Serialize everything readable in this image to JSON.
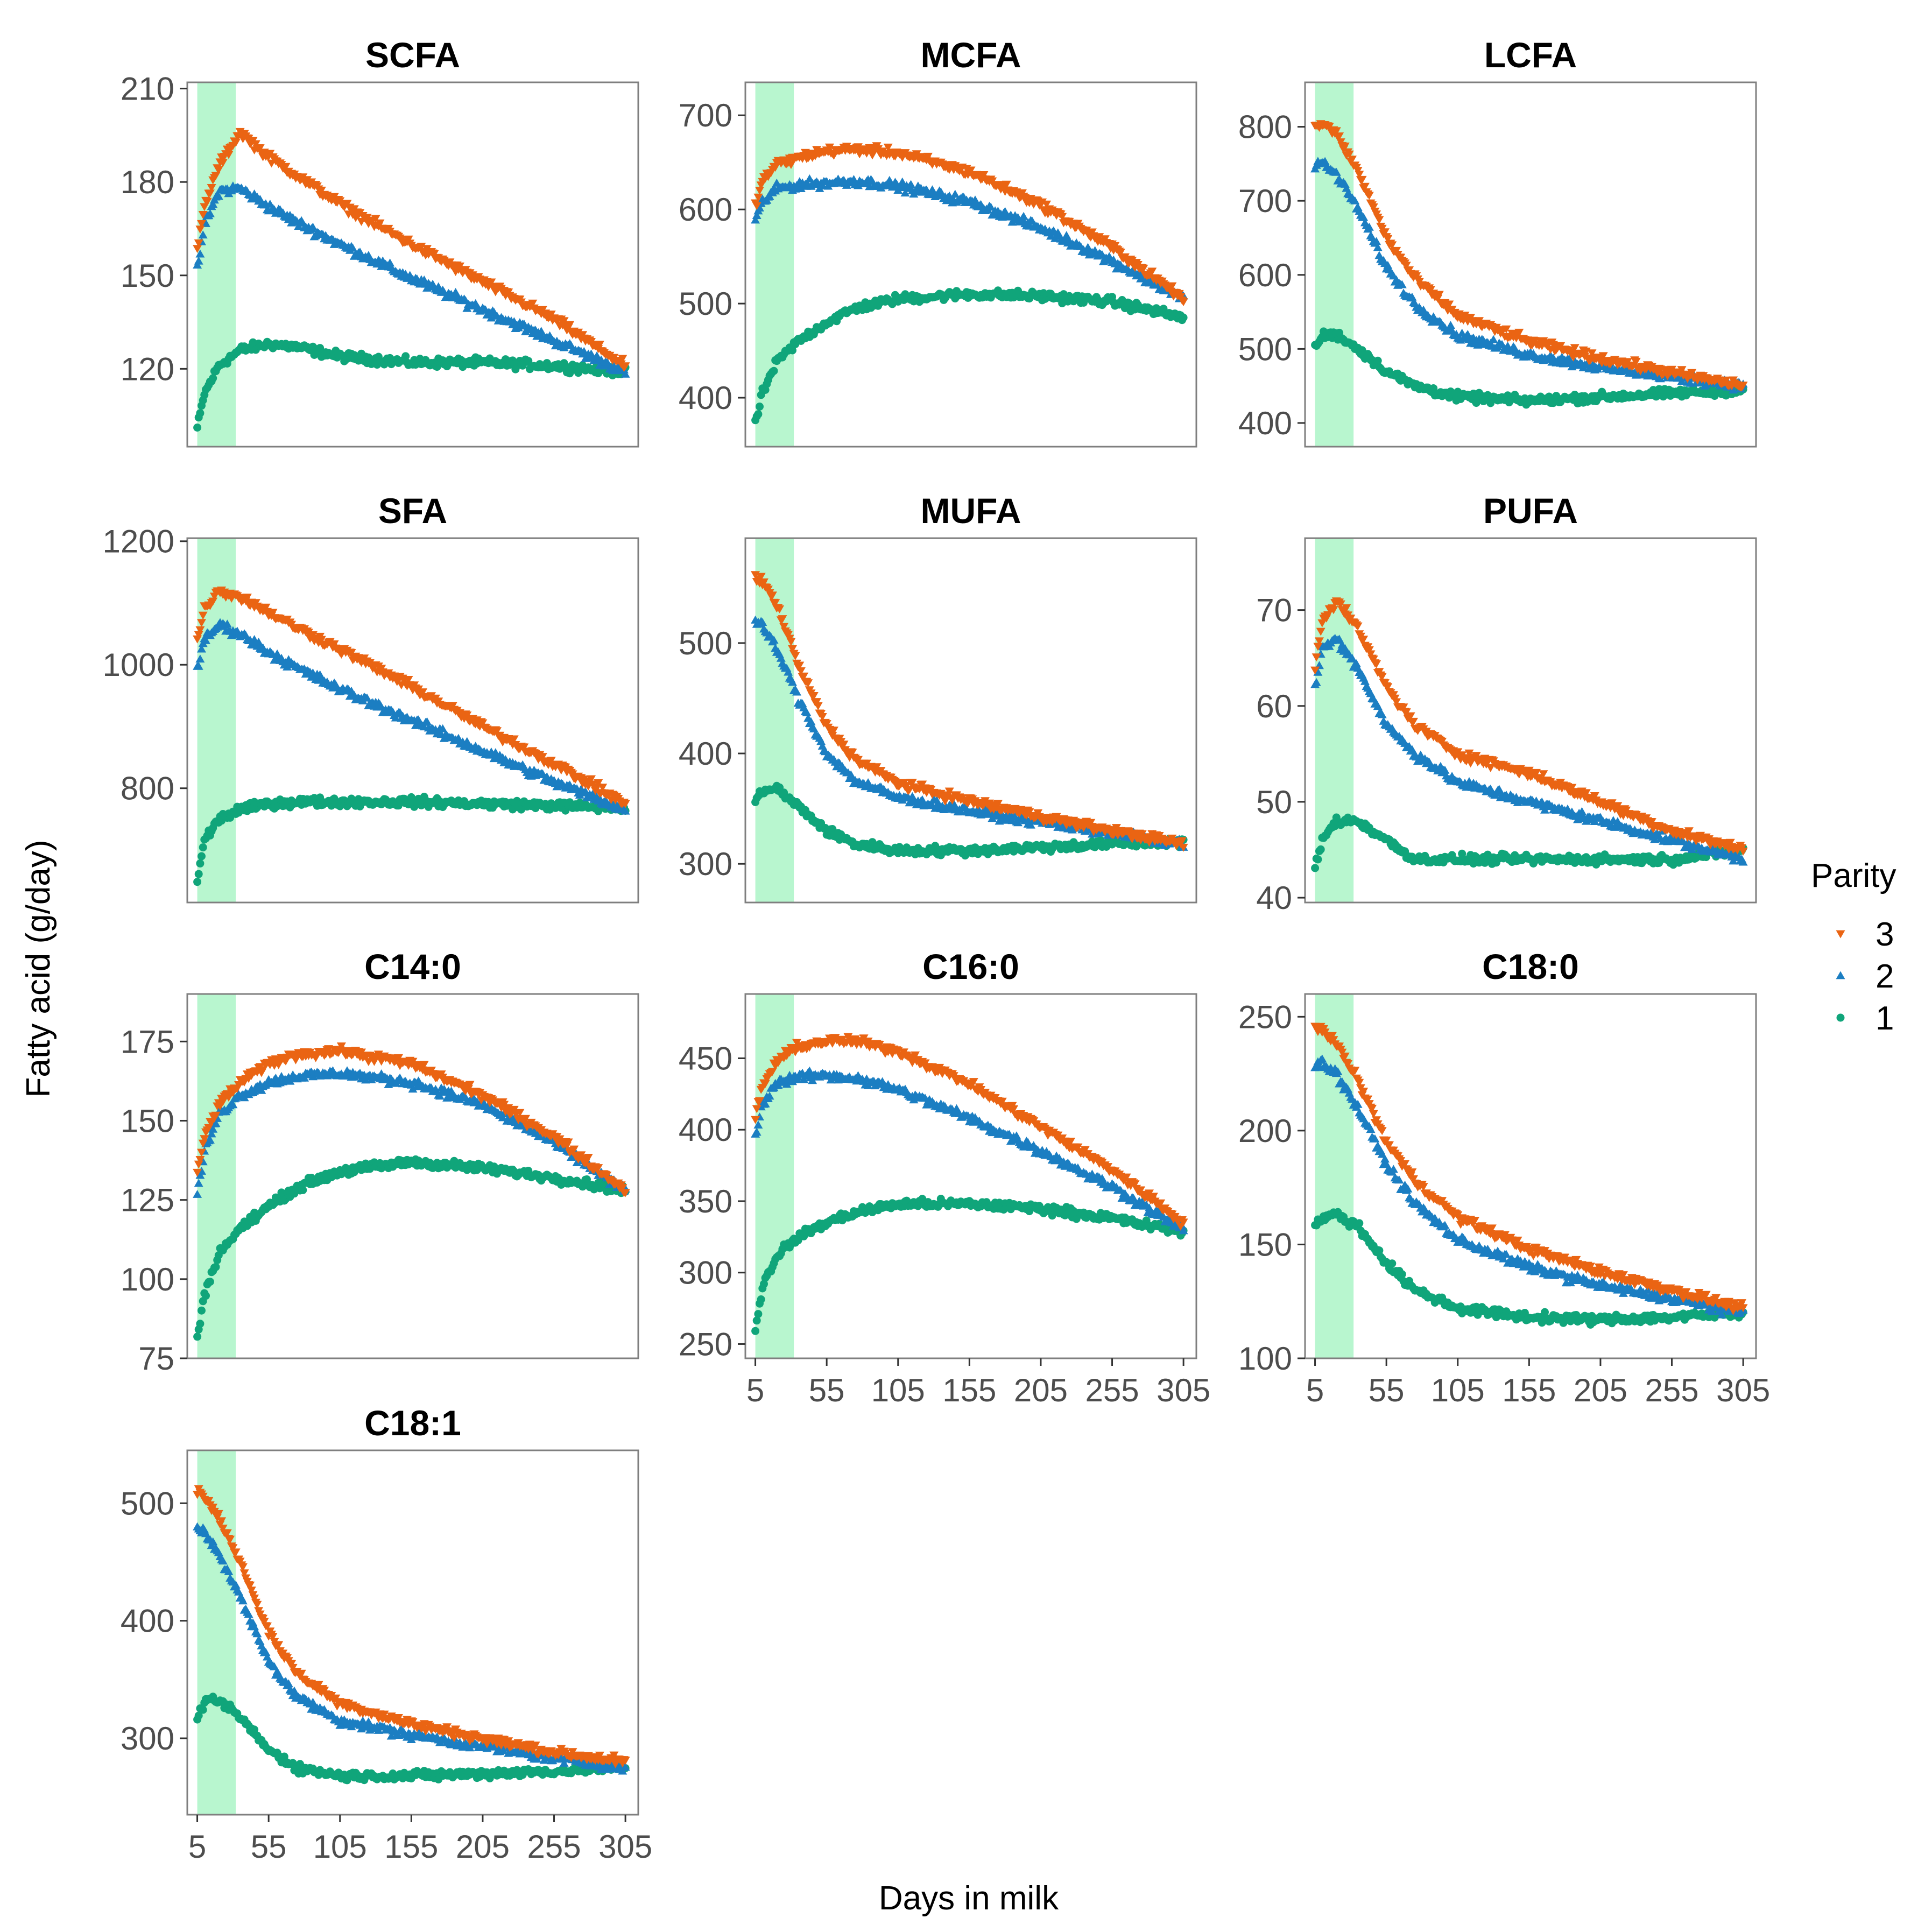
{
  "chart_data": {
    "type": "scatter",
    "xlabel": "Days in milk",
    "ylabel": "Fatty acid (g/day)",
    "x_ticks": [
      5,
      55,
      105,
      155,
      205,
      255,
      305
    ],
    "x_tick_labels": [
      "5",
      "55",
      "105",
      "155",
      "205",
      "255",
      "305"
    ],
    "xlim": [
      -2,
      314
    ],
    "highlight_band": {
      "x_start": 5,
      "x_end": 32,
      "color": "#b4f5cc"
    },
    "legend": {
      "title": "Parity",
      "entries": [
        {
          "label": "3",
          "series": "3",
          "marker": "triangle-down",
          "color": "#ea6413"
        },
        {
          "label": "2",
          "series": "2",
          "marker": "triangle-up",
          "color": "#1b7ec2"
        },
        {
          "label": "1",
          "series": "1",
          "marker": "circle",
          "color": "#10a57a"
        }
      ]
    },
    "series_draw_order": [
      "1",
      "2",
      "3"
    ],
    "panels": [
      {
        "title": "SCFA",
        "ylim": [
          95,
          212
        ],
        "y_ticks": [
          120,
          150,
          180,
          210
        ],
        "y_tick_labels": [
          "120",
          "150",
          "180",
          "210"
        ],
        "series": {
          "3": {
            "x": [
              5,
              10,
              20,
              35,
              55,
              75,
              105,
              155,
              205,
              255,
              305
            ],
            "y": [
              158,
              172,
              185,
              196,
              188,
              182,
              173,
              160,
              148,
              136,
              121
            ]
          },
          "2": {
            "x": [
              5,
              10,
              20,
              35,
              55,
              75,
              105,
              155,
              205,
              255,
              305
            ],
            "y": [
              152,
              166,
              177,
              178,
              172,
              167,
              160,
              149,
              139,
              129,
              119
            ]
          },
          "1": {
            "x": [
              5,
              10,
              20,
              35,
              55,
              75,
              105,
              155,
              205,
              255,
              305
            ],
            "y": [
              101,
              112,
              121,
              126,
              128,
              127,
              124,
              122,
              122,
              121,
              119
            ]
          }
        }
      },
      {
        "title": "MCFA",
        "ylim": [
          348,
          735
        ],
        "y_ticks": [
          400,
          500,
          600,
          700
        ],
        "y_tick_labels": [
          "400",
          "500",
          "600",
          "700"
        ],
        "series": {
          "3": {
            "x": [
              5,
              10,
              20,
              35,
              55,
              75,
              105,
              155,
              205,
              255,
              305
            ],
            "y": [
              605,
              630,
              648,
              655,
              662,
              664,
              660,
              640,
              605,
              560,
              505
            ]
          },
          "2": {
            "x": [
              5,
              10,
              20,
              35,
              55,
              75,
              105,
              155,
              205,
              255,
              305
            ],
            "y": [
              588,
              608,
              622,
              626,
              628,
              630,
              625,
              608,
              580,
              545,
              505
            ]
          },
          "1": {
            "x": [
              5,
              10,
              20,
              35,
              55,
              75,
              105,
              155,
              205,
              255,
              305
            ],
            "y": [
              372,
              405,
              438,
              460,
              480,
              495,
              505,
              510,
              508,
              502,
              485
            ]
          }
        }
      },
      {
        "title": "LCFA",
        "ylim": [
          368,
          860
        ],
        "y_ticks": [
          400,
          500,
          600,
          700,
          800
        ],
        "y_tick_labels": [
          "400",
          "500",
          "600",
          "700",
          "800"
        ],
        "series": {
          "3": {
            "x": [
              5,
              10,
              20,
              35,
              55,
              75,
              105,
              155,
              205,
              255,
              305
            ],
            "y": [
              800,
              805,
              790,
              740,
              650,
              595,
              545,
              510,
              487,
              468,
              450
            ]
          },
          "2": {
            "x": [
              5,
              10,
              20,
              35,
              55,
              75,
              105,
              155,
              205,
              255,
              305
            ],
            "y": [
              745,
              752,
              735,
              690,
              610,
              560,
              518,
              492,
              475,
              462,
              450
            ]
          },
          "1": {
            "x": [
              5,
              10,
              20,
              35,
              55,
              75,
              105,
              155,
              205,
              255,
              305
            ],
            "y": [
              500,
              518,
              520,
              500,
              470,
              450,
              435,
              430,
              435,
              440,
              445
            ]
          }
        }
      },
      {
        "title": "SFA",
        "ylim": [
          615,
          1205
        ],
        "y_ticks": [
          800,
          1000,
          1200
        ],
        "y_tick_labels": [
          "800",
          "1000",
          "1200"
        ],
        "series": {
          "3": {
            "x": [
              5,
              10,
              20,
              35,
              55,
              75,
              105,
              155,
              205,
              255,
              305
            ],
            "y": [
              1040,
              1090,
              1120,
              1110,
              1085,
              1060,
              1025,
              965,
              900,
              840,
              775
            ]
          },
          "2": {
            "x": [
              5,
              10,
              20,
              35,
              55,
              75,
              105,
              155,
              205,
              255,
              305
            ],
            "y": [
              990,
              1040,
              1065,
              1050,
              1020,
              995,
              960,
              910,
              860,
              810,
              765
            ]
          },
          "1": {
            "x": [
              5,
              10,
              20,
              35,
              55,
              75,
              105,
              155,
              205,
              255,
              305
            ],
            "y": [
              650,
              715,
              750,
              765,
              775,
              778,
              778,
              778,
              775,
              772,
              768
            ]
          }
        }
      },
      {
        "title": "MUFA",
        "ylim": [
          265,
          595
        ],
        "y_ticks": [
          300,
          400,
          500
        ],
        "y_tick_labels": [
          "300",
          "400",
          "500"
        ],
        "series": {
          "3": {
            "x": [
              5,
              10,
              20,
              35,
              55,
              75,
              105,
              155,
              205,
              255,
              305
            ],
            "y": [
              560,
              555,
              535,
              480,
              425,
              395,
              373,
              357,
              343,
              330,
              318
            ]
          },
          "2": {
            "x": [
              5,
              10,
              20,
              35,
              55,
              75,
              105,
              155,
              205,
              255,
              305
            ],
            "y": [
              520,
              515,
              495,
              450,
              400,
              375,
              360,
              348,
              338,
              328,
              318
            ]
          },
          "1": {
            "x": [
              5,
              10,
              20,
              35,
              55,
              75,
              105,
              155,
              205,
              255,
              305
            ],
            "y": [
              355,
              367,
              368,
              352,
              330,
              318,
              312,
              312,
              315,
              318,
              320
            ]
          }
        }
      },
      {
        "title": "PUFA",
        "ylim": [
          39.5,
          77.5
        ],
        "y_ticks": [
          40,
          50,
          60,
          70
        ],
        "y_tick_labels": [
          "40",
          "50",
          "60",
          "70"
        ],
        "series": {
          "3": {
            "x": [
              5,
              10,
              20,
              35,
              55,
              75,
              105,
              155,
              205,
              255,
              305
            ],
            "y": [
              64,
              69,
              71,
              68,
              62,
              58,
              55,
              53,
              50,
              47,
              45
            ]
          },
          "2": {
            "x": [
              5,
              10,
              20,
              35,
              55,
              75,
              105,
              155,
              205,
              255,
              305
            ],
            "y": [
              62,
              66,
              67,
              64,
              58,
              55,
              52,
              50,
              48,
              46,
              44
            ]
          },
          "1": {
            "x": [
              5,
              10,
              20,
              35,
              55,
              75,
              105,
              155,
              205,
              255,
              305
            ],
            "y": [
              43,
              46,
              48,
              48,
              46,
              44,
              44,
              44,
              44,
              44,
              45
            ]
          }
        }
      },
      {
        "title": "C14:0",
        "ylim": [
          75,
          190
        ],
        "y_ticks": [
          75,
          100,
          125,
          150,
          175
        ],
        "y_tick_labels": [
          "75",
          "100",
          "125",
          "150",
          "175"
        ],
        "series": {
          "3": {
            "x": [
              5,
              10,
              20,
              35,
              55,
              75,
              105,
              155,
              205,
              255,
              305
            ],
            "y": [
              133,
              145,
              155,
              162,
              168,
              171,
              172,
              168,
              158,
              145,
              128
            ]
          },
          "2": {
            "x": [
              5,
              10,
              20,
              35,
              55,
              75,
              105,
              155,
              205,
              255,
              305
            ],
            "y": [
              127,
              140,
              152,
              158,
              162,
              164,
              165,
              162,
              155,
              143,
              128
            ]
          },
          "1": {
            "x": [
              5,
              10,
              20,
              35,
              55,
              75,
              105,
              155,
              205,
              255,
              305
            ],
            "y": [
              82,
              95,
              108,
              116,
              123,
              129,
              134,
              137,
              135,
              132,
              128
            ]
          }
        }
      },
      {
        "title": "C16:0",
        "ylim": [
          240,
          495
        ],
        "y_ticks": [
          250,
          300,
          350,
          400,
          450
        ],
        "y_tick_labels": [
          "250",
          "300",
          "350",
          "400",
          "450"
        ],
        "series": {
          "3": {
            "x": [
              5,
              10,
              20,
              35,
              55,
              75,
              105,
              155,
              205,
              255,
              305
            ],
            "y": [
              410,
              430,
              448,
              458,
              462,
              462,
              455,
              432,
              402,
              372,
              335
            ]
          },
          "2": {
            "x": [
              5,
              10,
              20,
              35,
              55,
              75,
              105,
              155,
              205,
              255,
              305
            ],
            "y": [
              395,
              418,
              433,
              437,
              438,
              436,
              428,
              408,
              385,
              360,
              330
            ]
          },
          "1": {
            "x": [
              5,
              10,
              20,
              35,
              55,
              75,
              105,
              155,
              205,
              255,
              305
            ],
            "y": [
              260,
              290,
              312,
              325,
              335,
              342,
              348,
              348,
              345,
              338,
              328
            ]
          }
        }
      },
      {
        "title": "C18:0",
        "ylim": [
          100,
          260
        ],
        "y_ticks": [
          100,
          150,
          200,
          250
        ],
        "y_tick_labels": [
          "100",
          "150",
          "200",
          "250"
        ],
        "series": {
          "3": {
            "x": [
              5,
              10,
              20,
              35,
              55,
              75,
              105,
              155,
              205,
              255,
              305
            ],
            "y": [
              245,
              245,
              238,
              222,
              195,
              178,
              162,
              148,
              138,
              130,
              122
            ]
          },
          "2": {
            "x": [
              5,
              10,
              20,
              35,
              55,
              75,
              105,
              155,
              205,
              255,
              305
            ],
            "y": [
              228,
              230,
              225,
              210,
              185,
              168,
              152,
              140,
              132,
              126,
              120
            ]
          },
          "1": {
            "x": [
              5,
              10,
              20,
              35,
              55,
              75,
              105,
              155,
              205,
              255,
              305
            ],
            "y": [
              158,
              162,
              163,
              158,
              142,
              130,
              122,
              118,
              117,
              118,
              120
            ]
          }
        }
      },
      {
        "title": "C18:1",
        "ylim": [
          235,
          545
        ],
        "y_ticks": [
          300,
          400,
          500
        ],
        "y_tick_labels": [
          "300",
          "400",
          "500"
        ],
        "series": {
          "3": {
            "x": [
              5,
              10,
              20,
              35,
              55,
              75,
              105,
              155,
              205,
              255,
              305
            ],
            "y": [
              510,
              505,
              488,
              450,
              390,
              355,
              330,
              312,
              300,
              288,
              280
            ]
          },
          "2": {
            "x": [
              5,
              10,
              20,
              35,
              55,
              75,
              105,
              155,
              205,
              255,
              305
            ],
            "y": [
              480,
              475,
              458,
              420,
              365,
              335,
              315,
              303,
              293,
              283,
              275
            ]
          },
          "1": {
            "x": [
              5,
              10,
              20,
              35,
              55,
              75,
              105,
              155,
              205,
              255,
              305
            ],
            "y": [
              320,
              330,
              332,
              318,
              290,
              275,
              268,
              268,
              270,
              272,
              275
            ]
          }
        }
      }
    ]
  }
}
